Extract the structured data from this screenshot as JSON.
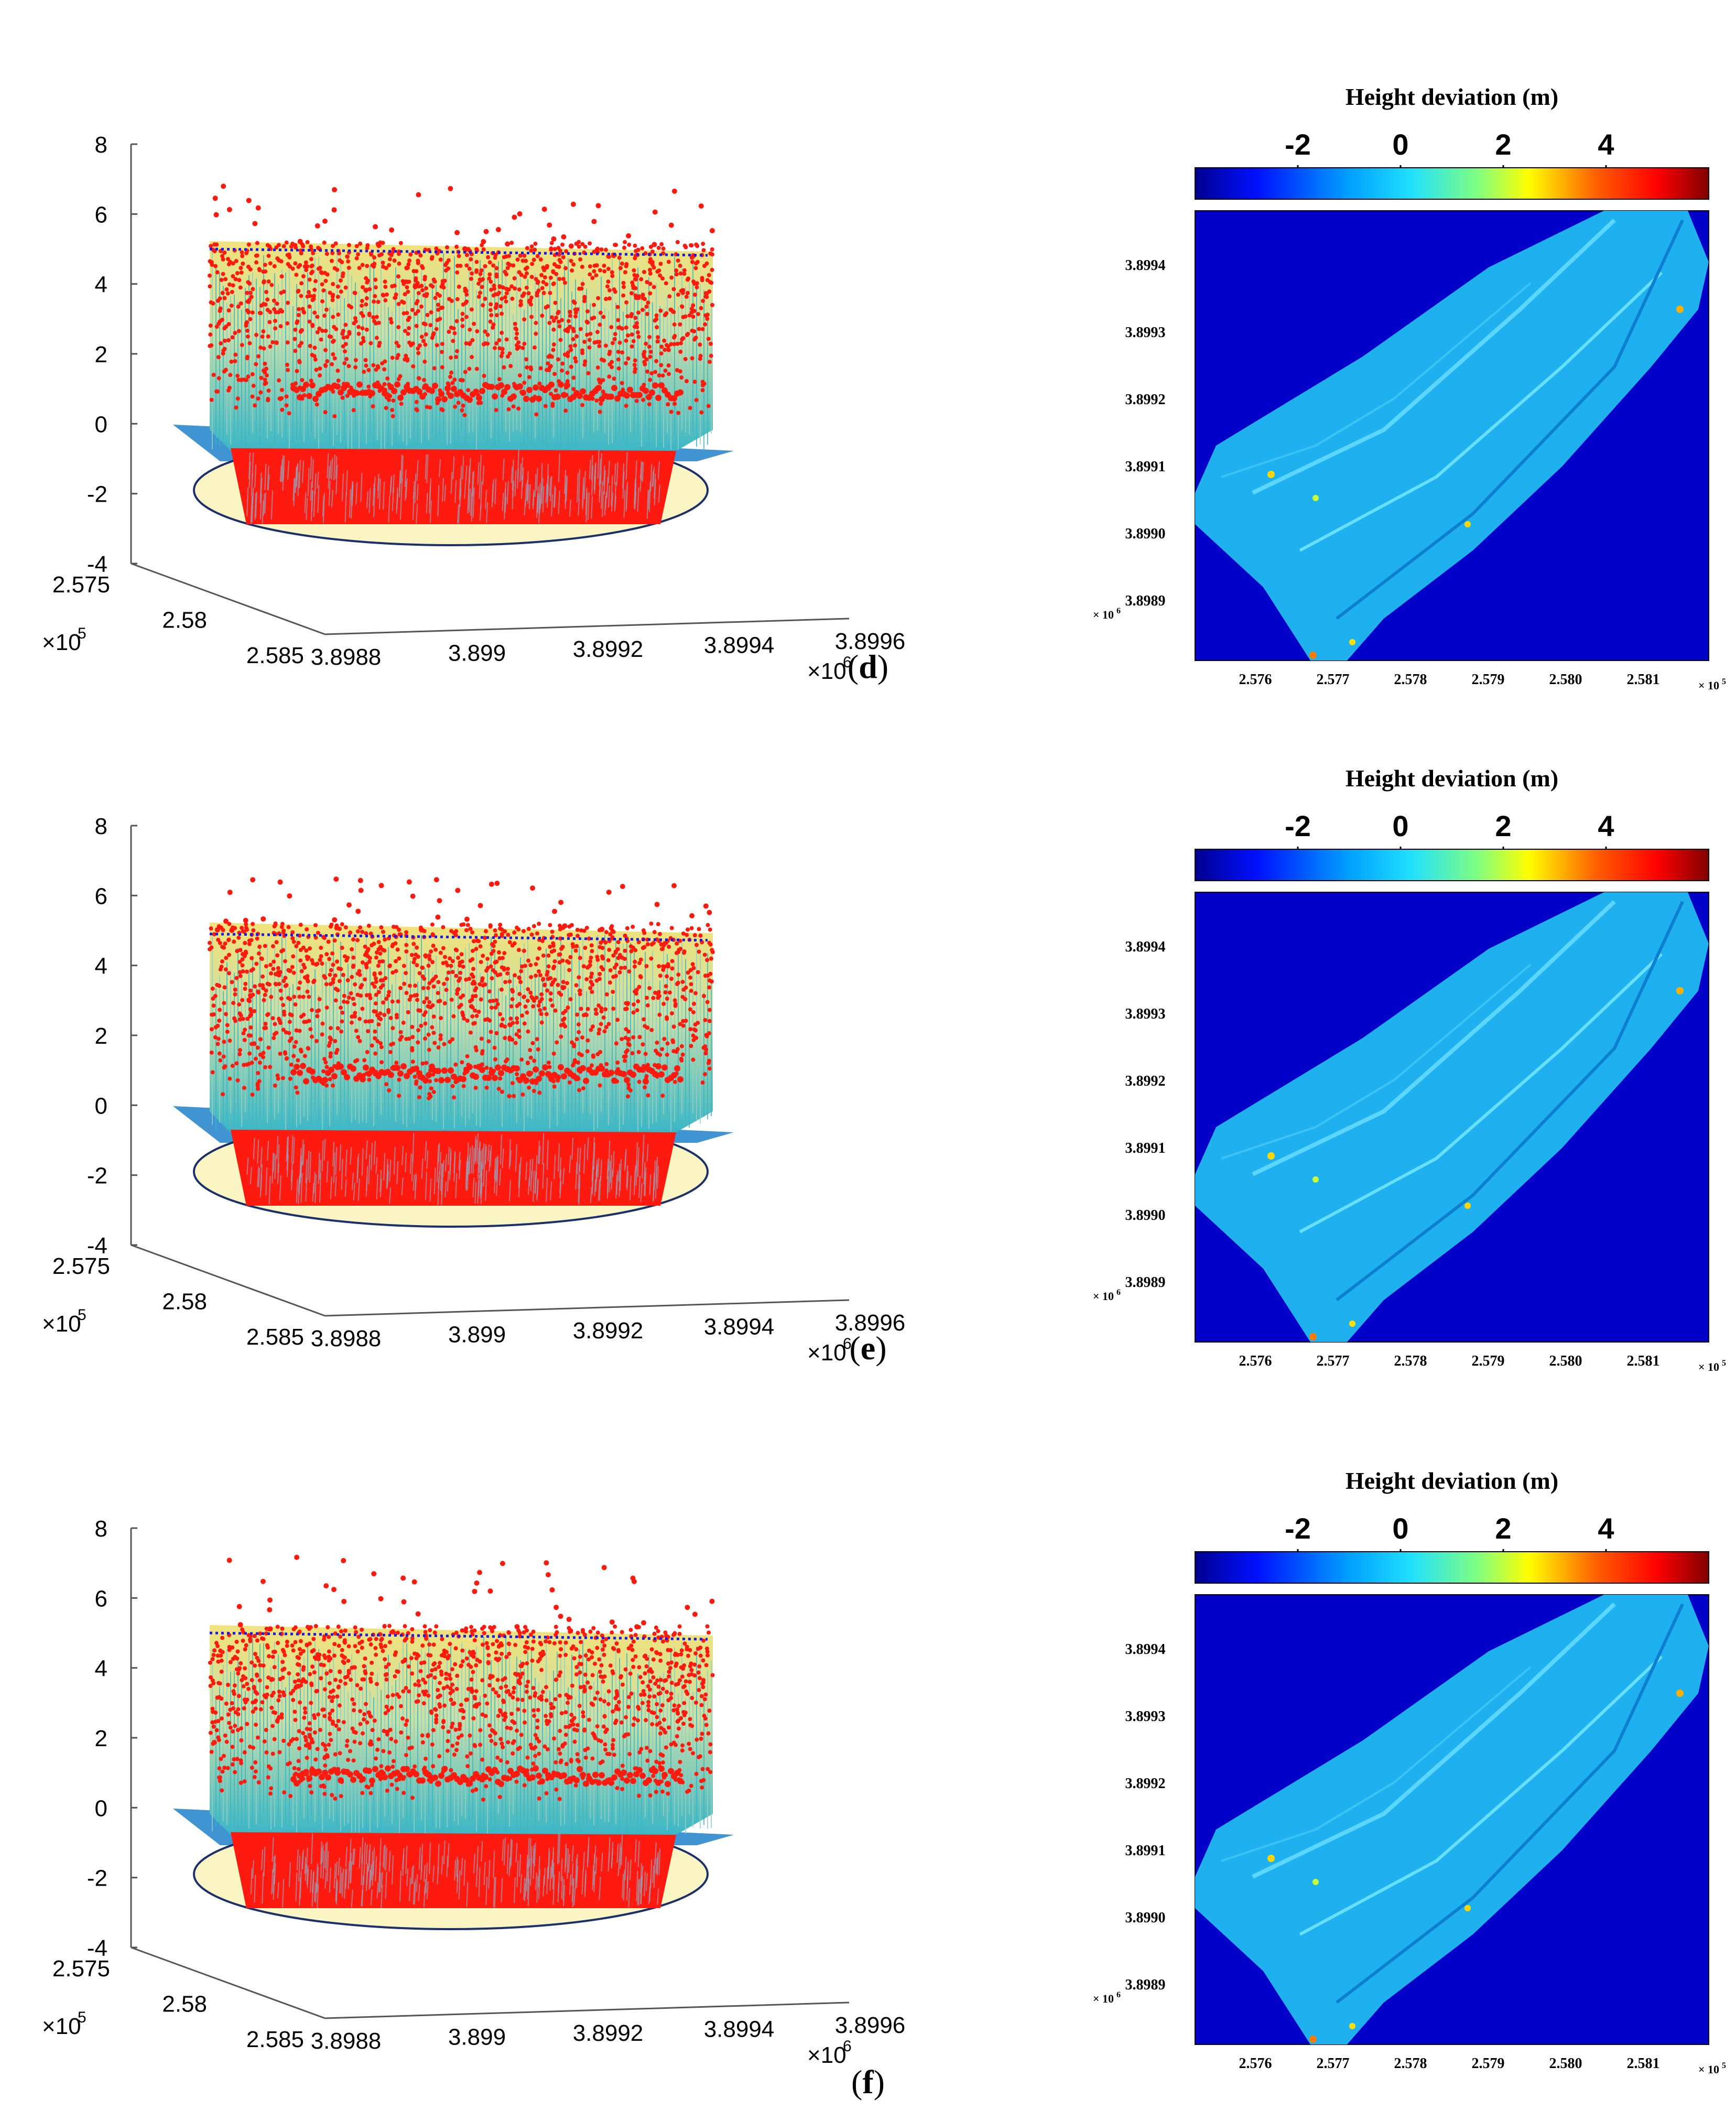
{
  "figure": {
    "panels": [
      {
        "label": "d"
      },
      {
        "label": "e"
      },
      {
        "label": "f"
      }
    ]
  },
  "colors": {
    "red_points": "#ff1a0f",
    "surface_cyan": "#4fc3c9",
    "surface_yellow": "#f2e27a",
    "plane_blue": "#2a88cc",
    "ellipse_fill": "#fbf5c4",
    "ellipse_stroke": "#1b2f6b",
    "map_background": "#0000c8",
    "map_body": "#1fb0f0"
  },
  "chart_data": [
    {
      "type": "scatter",
      "panel": "d",
      "title": "",
      "z_ticks": [
        "8",
        "6",
        "4",
        "2",
        "0",
        "-2",
        "-4"
      ],
      "zlim": [
        -4,
        8
      ],
      "x_ticks": [
        "2.575",
        "2.58",
        "2.585"
      ],
      "x_exponent": "×10",
      "x_exponent_power": "5",
      "y_ticks": [
        "3.8988",
        "3.899",
        "3.8992",
        "3.8994",
        "3.8996"
      ],
      "y_exponent": "×10",
      "y_exponent_power": "6",
      "series": [
        {
          "name": "point cloud (red)",
          "z_range": [
            -2.5,
            6.8
          ]
        },
        {
          "name": "reference height (dotted blue)",
          "value": 5.0
        },
        {
          "name": "ground plane",
          "value": 0
        }
      ]
    },
    {
      "type": "heatmap",
      "panel": "d",
      "title": "Height deviation (m)",
      "colorbar_ticks": [
        "-2",
        "0",
        "2",
        "4"
      ],
      "colorbar_range": [
        -4,
        6
      ],
      "y_ticks": [
        "3.8994",
        "3.8993",
        "3.8992",
        "3.8991",
        "3.8990",
        "3.8989"
      ],
      "y_exponent": "× 10",
      "y_exponent_power": "6",
      "x_ticks": [
        "2.576",
        "2.577",
        "2.578",
        "2.579",
        "2.580",
        "2.581"
      ],
      "x_exponent": "× 10",
      "x_exponent_power": "5"
    },
    {
      "type": "scatter",
      "panel": "e",
      "title": "",
      "z_ticks": [
        "8",
        "6",
        "4",
        "2",
        "0",
        "-2",
        "-4"
      ],
      "zlim": [
        -4,
        8
      ],
      "x_ticks": [
        "2.575",
        "2.58",
        "2.585"
      ],
      "x_exponent": "×10",
      "x_exponent_power": "5",
      "y_ticks": [
        "3.8988",
        "3.899",
        "3.8992",
        "3.8994",
        "3.8996"
      ],
      "y_exponent": "×10",
      "y_exponent_power": "6",
      "series": [
        {
          "name": "point cloud (red)",
          "z_range": [
            -2.5,
            6.6
          ]
        },
        {
          "name": "reference height (dotted blue)",
          "value": 4.9
        },
        {
          "name": "ground plane",
          "value": 0
        }
      ]
    },
    {
      "type": "heatmap",
      "panel": "e",
      "title": "Height deviation (m)",
      "colorbar_ticks": [
        "-2",
        "0",
        "2",
        "4"
      ],
      "colorbar_range": [
        -4,
        6
      ],
      "y_ticks": [
        "3.8994",
        "3.8993",
        "3.8992",
        "3.8991",
        "3.8990",
        "3.8989"
      ],
      "y_exponent": "× 10",
      "y_exponent_power": "6",
      "x_ticks": [
        "2.576",
        "2.577",
        "2.578",
        "2.579",
        "2.580",
        "2.581"
      ],
      "x_exponent": "× 10",
      "x_exponent_power": "5"
    },
    {
      "type": "scatter",
      "panel": "f",
      "title": "",
      "z_ticks": [
        "8",
        "6",
        "4",
        "2",
        "0",
        "-2",
        "-4"
      ],
      "zlim": [
        -4,
        8
      ],
      "x_ticks": [
        "2.575",
        "2.58",
        "2.585"
      ],
      "x_exponent": "×10",
      "x_exponent_power": "5",
      "y_ticks": [
        "3.8988",
        "3.899",
        "3.8992",
        "3.8994",
        "3.8996"
      ],
      "y_exponent": "×10",
      "y_exponent_power": "6",
      "series": [
        {
          "name": "point cloud (red)",
          "z_range": [
            -2.5,
            7.2
          ]
        },
        {
          "name": "reference height (dotted blue)",
          "value": 5.0
        },
        {
          "name": "ground plane",
          "value": 0
        }
      ]
    },
    {
      "type": "heatmap",
      "panel": "f",
      "title": "Height deviation (m)",
      "colorbar_ticks": [
        "-2",
        "0",
        "2",
        "4"
      ],
      "colorbar_range": [
        -4,
        6
      ],
      "y_ticks": [
        "3.8994",
        "3.8993",
        "3.8992",
        "3.8991",
        "3.8990",
        "3.8989"
      ],
      "y_exponent": "× 10",
      "y_exponent_power": "6",
      "x_ticks": [
        "2.576",
        "2.577",
        "2.578",
        "2.579",
        "2.580",
        "2.581"
      ],
      "x_exponent": "× 10",
      "x_exponent_power": "5"
    }
  ]
}
